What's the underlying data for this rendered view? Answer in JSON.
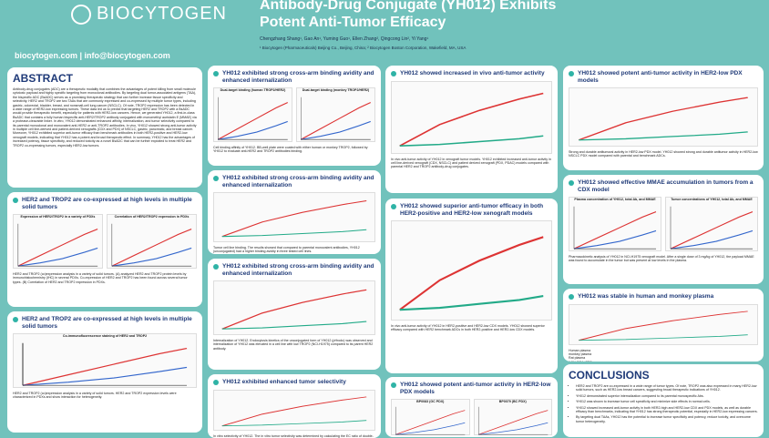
{
  "header": {
    "logo": "BIOCYTOGEN",
    "title_line1": "Antibody-Drug Conjugate (YH012) Exhibits",
    "title_line2": "Potent Anti-Tumor Efficacy",
    "authors": "Chengzhang Shang¹, Gao An¹, Yuming Guo¹, Ellen Zhang², Qingcong Lin², Yi Yang¹",
    "affiliations": "¹ Biocytogen (Pharmaceuticals) Beijing Co., Beijing, China; ² Biocytogen Boston Corporation, Wakefield, MA, USA",
    "contact": "biocytogen.com  |  info@biocytogen.com"
  },
  "abstract": {
    "heading": "ABSTRACT",
    "text": "Antibody-drug conjugates (ADC) are a therapeutic modality that combines the advantages of potent killing from small molecule cytotoxic payload and highly specific targeting from monoclonal antibodies. By targeting dual tumor-associated antigens (TAA), the bispecific ADC (BsADC) serves as a promising therapeutic strategy that can further increase tissue specificity and selectivity. HER2 and TROP2 are two TAAs that are commonly expressed and co-expressed by multiple tumor types, including gastric, colorectal, bladder, breast, and nonsmall-cell lung cancer (NSCLC). Of note, TROP2 expression has been detected in a wide range of HER2-low expressing tumors. These data led us to predict that targeting HER2 and TROP2 with a BsADC would provide therapeutic benefit, especially for patients with HER2-low cancers. Hence, we generated YH012, a first-in-class BsADC that contains a fully human bispecific anti-HER2/TROP2 antibody conjugated with monomethyl auristatin E (MMAE) via a protease-cleavable linker. In vitro, YH012 demonstrated enhanced affinity, internalization, and tumor selectivity compared to its parental monoclonal and monovalent anti-HER2 or anti-TROP2 antibodies. In vivo, YH012 showed strong anti-tumor activity in multiple cell line-derived and patient-derived xenografts (CDX and PDX) of NSCLC, gastric, pancreatic, and breast cancer. Moreover, YH012 exhibited superior anti-tumor efficacy than benchmark antibodies in both HER2-positive and HER2-low xenograft models, indicating that YH012 has a potent and broad therapeutic effect. In summary, YH012 has the advantages of increased potency, tissue specificity, and reduced toxicity as a novel BsADC that can be further exploited to treat HER2 and TROP2 co-expressing tumors, especially HER2-low tumors."
  },
  "sections": [
    {
      "title": "HER2 and TROP2 are co-expressed at high levels in multiple solid tumors",
      "fig_a": "Expression of HER2/TROP2 in a variety of PDXs",
      "fig_b": "Correlation of HER2/TROP2 expression in PDXs",
      "text": "HER2 and TROP2 (co)expression analysis in a variety of solid tumors. (A) analyzed HER2 and TROP2 protein levels by immunohistochemistry (IHC) in several PDXs. Co-expression of HER2 and TROP2 has been found across several tumor types. (B) Correlation of HER2 and TROP2 expression in PDXs."
    },
    {
      "title": "HER2 and TROP2 are co-expressed at high levels in multiple solid tumors",
      "fig_a": "Co-immunofluorescence staining of HER2 and TROP2",
      "text": "HER2 and TROP2 (co)expression analysis in a variety of solid tumors. HER2 and TROP2 expression levels were characterized in PDXs and show interaction for heterogeneity."
    },
    {
      "title": "YH012 exhibited strong cross-arm binding avidity and enhanced internalization",
      "fig_a": "Dual-target binding (human TROP2/HER2)",
      "fig_b": "Dual-target binding (monkey TROP2/HER2)",
      "text": "Cell binding affinity of YH012. BB-well plate were coated with either human or monkey TROP2, followed by YH012 to evaluate anti-HER2 and TROP2 antibodies binding."
    },
    {
      "title": "YH012 exhibited strong cross-arm binding avidity and enhanced internalization",
      "text": "Tumor cell line binding. The results showed that compared to parental monovalent antibodies, YH012 (unconjugated) had a higher binding avidity in three tested cell lines."
    },
    {
      "title": "YH012 exhibited strong cross-arm binding avidity and enhanced internalization",
      "text": "Internalization of YH012. Endocytosis kinetics of the unconjugated form of YH012 (pHrodo) was observed and internalization of YH012 was elevated in a cell line with low TROP2 (NCI-H1975) compared to its parent HER2 antibody."
    },
    {
      "title": "YH012 exhibited enhanced tumor selectivity",
      "text": "In vitro selectivity of YH012. The in vitro tumor selectivity was determined by calculating the EC ratio of double-positive tumor cells to single-positive cell line."
    },
    {
      "title": "YH012 showed increased in vivo anti-tumor activity",
      "text": "In vivo anti-tumor activity of YH012 in xenograft tumor models. YH012 exhibited increased anti-tumor activity in cell line-derived xenograft (CDX, NSCLC) and patient derived xenograft (PDX, PDAC) models compared with parental HER2 and TROP2 antibody-drug conjugates."
    },
    {
      "title": "YH012 showed superior anti-tumor efficacy in both HER2-positive and HER2-low xenograft models",
      "text": "In vivo anti-tumor activity of YH012 in HER2-positive and HER2-low CDX models. YH012 showed superior efficacy compared with HER2 benchmark ADCs in both HER2-positive and HER2-low CDX models."
    },
    {
      "title": "YH012 showed potent anti-tumor activity in HER2-low PDX models",
      "fig_a": "BP0083 (GC PDX)",
      "fig_b": "BP0079 (BC PDX)",
      "text": "Days after treatment start"
    },
    {
      "title": "YH012 showed potent anti-tumor activity in HER2-low PDX models",
      "text": "Strong and durable antitumoral activity in HER2-low PDX model. YH012 showed strong and durable antitumor activity in HER2-low NSCLC PDX model compared with parental and benchmark ADCs."
    },
    {
      "title": "YH012 showed effective MMAE accumulation in tumors from a CDX model",
      "fig_a": "Plasma concentration of YH012, total Ab, and MMAE",
      "fig_b": "Tumor concentrations of YH012, total Ab, and MMAE",
      "text": "Pharmacokinetic analysis of YH012 in NCI-H1975 xenograft model. After a single dose of 3 mg/kg of YH012, the payload MMAE was found to accumulate in the tumor but was present at low levels in the plasma."
    },
    {
      "title": "YH012 was stable in human and monkey plasma",
      "legend": [
        "Human plasma",
        "monkey plasma",
        "Rat plasma",
        "0.5% BSA+PBS"
      ],
      "text": "In vitro stability analysis of YH012 in plasma. The release of MMAE from YH012 over 14 days at a concentration of 100 μg/mL and 37°C was evaluated in rat, monkey, and human plasma. The results showed that the release of free MMAE from YH012 was between 0.3% to 1.0% on day 14 in monkey and human plasma, indicating that YH012 remains stable in these types of plasma."
    }
  ],
  "conclusions": {
    "heading": "CONCLUSIONS",
    "items": [
      "HER2 and TROP2 are co-expressed in a wide range of tumor types. Of note, TROP2 was also expressed in many HER2-low solid tumors, such as HER2-low breast cancers, suggesting broad therapeutic indications of YH012.",
      "YH012 demonstrated superior internalization compared to its parental monospecific Abs.",
      "YH012 was shown to increase tumor cell specificity and minimize side effects in normal cells.",
      "YH012 showed increased anti-tumor activity in both HER2-high and HER2-low CDX and PDX models, as well as durable efficacy than benchmarks, indicating that YH012 has strong therapeutic potential, especially in HER2-low expressing cancers.",
      "By targeting dual TAAs, YH012 has the potential to increase tumor specificity and potency, reduce toxicity, and overcome tumor heterogeneity."
    ]
  }
}
